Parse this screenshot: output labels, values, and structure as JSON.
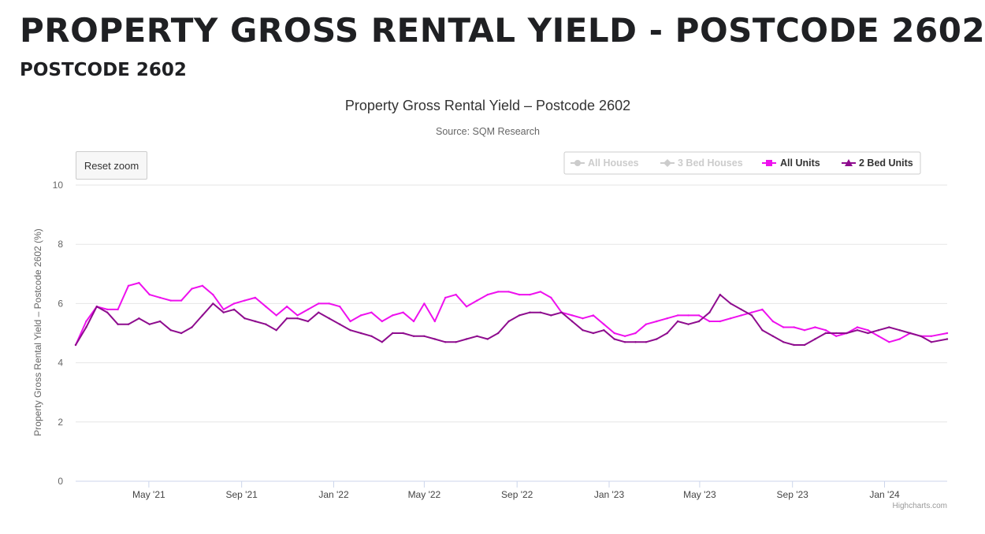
{
  "page": {
    "title": "PROPERTY GROSS RENTAL YIELD - POSTCODE 2602",
    "subtitle": "POSTCODE 2602"
  },
  "colors": {
    "all_houses": "#cccccc",
    "three_bed_houses": "#cccccc",
    "all_units": "#ee11ee",
    "two_bed_units": "#8e0c8e",
    "grid": "#e6e6e6",
    "axis_text": "#666666"
  },
  "chart_data": {
    "type": "line",
    "title": "Property Gross Rental Yield – Postcode 2602",
    "subtitle": "Source: SQM Research",
    "ylabel": "Property Gross Rental Yield – Postcode 2602 (%)",
    "xlabel": "",
    "ylim": [
      0,
      10
    ],
    "yticks": [
      0,
      2,
      4,
      6,
      8,
      10
    ],
    "x_range": [
      "2021-01-24",
      "2024-03-24"
    ],
    "xticks": [
      {
        "date": "2021-05-01",
        "label": "May '21"
      },
      {
        "date": "2021-09-01",
        "label": "Sep '21"
      },
      {
        "date": "2022-01-01",
        "label": "Jan '22"
      },
      {
        "date": "2022-05-01",
        "label": "May '22"
      },
      {
        "date": "2022-09-01",
        "label": "Sep '22"
      },
      {
        "date": "2023-01-01",
        "label": "Jan '23"
      },
      {
        "date": "2023-05-01",
        "label": "May '23"
      },
      {
        "date": "2023-09-01",
        "label": "Sep '23"
      },
      {
        "date": "2024-01-01",
        "label": "Jan '24"
      }
    ],
    "grid": true,
    "legend_position": "top-right",
    "credits": "Highcharts.com",
    "reset_zoom_label": "Reset zoom",
    "series": [
      {
        "name": "All Houses",
        "visible": false,
        "color": "#cccccc",
        "marker": "circle",
        "points": []
      },
      {
        "name": "3 Bed Houses",
        "visible": false,
        "color": "#cccccc",
        "marker": "diamond",
        "points": []
      },
      {
        "name": "All Units",
        "visible": true,
        "color": "#ee11ee",
        "marker": "square",
        "points": [
          [
            "2021-01-24",
            4.6
          ],
          [
            "2021-02-07",
            5.4
          ],
          [
            "2021-02-21",
            5.9
          ],
          [
            "2021-03-07",
            5.8
          ],
          [
            "2021-03-21",
            5.8
          ],
          [
            "2021-04-04",
            6.6
          ],
          [
            "2021-04-18",
            6.7
          ],
          [
            "2021-05-02",
            6.3
          ],
          [
            "2021-05-16",
            6.2
          ],
          [
            "2021-05-30",
            6.1
          ],
          [
            "2021-06-13",
            6.1
          ],
          [
            "2021-06-27",
            6.5
          ],
          [
            "2021-07-11",
            6.6
          ],
          [
            "2021-07-25",
            6.3
          ],
          [
            "2021-08-08",
            5.8
          ],
          [
            "2021-08-22",
            6.0
          ],
          [
            "2021-09-05",
            6.1
          ],
          [
            "2021-09-19",
            6.2
          ],
          [
            "2021-10-03",
            5.9
          ],
          [
            "2021-10-17",
            5.6
          ],
          [
            "2021-10-31",
            5.9
          ],
          [
            "2021-11-14",
            5.6
          ],
          [
            "2021-11-28",
            5.8
          ],
          [
            "2021-12-12",
            6.0
          ],
          [
            "2021-12-26",
            6.0
          ],
          [
            "2022-01-09",
            5.9
          ],
          [
            "2022-01-23",
            5.4
          ],
          [
            "2022-02-06",
            5.6
          ],
          [
            "2022-02-20",
            5.7
          ],
          [
            "2022-03-06",
            5.4
          ],
          [
            "2022-03-20",
            5.6
          ],
          [
            "2022-04-03",
            5.7
          ],
          [
            "2022-04-17",
            5.4
          ],
          [
            "2022-05-01",
            6.0
          ],
          [
            "2022-05-15",
            5.4
          ],
          [
            "2022-05-29",
            6.2
          ],
          [
            "2022-06-12",
            6.3
          ],
          [
            "2022-06-26",
            5.9
          ],
          [
            "2022-07-10",
            6.1
          ],
          [
            "2022-07-24",
            6.3
          ],
          [
            "2022-08-07",
            6.4
          ],
          [
            "2022-08-21",
            6.4
          ],
          [
            "2022-09-04",
            6.3
          ],
          [
            "2022-09-18",
            6.3
          ],
          [
            "2022-10-02",
            6.4
          ],
          [
            "2022-10-16",
            6.2
          ],
          [
            "2022-10-30",
            5.7
          ],
          [
            "2022-11-13",
            5.6
          ],
          [
            "2022-11-27",
            5.5
          ],
          [
            "2022-12-11",
            5.6
          ],
          [
            "2022-12-25",
            5.3
          ],
          [
            "2023-01-08",
            5.0
          ],
          [
            "2023-01-22",
            4.9
          ],
          [
            "2023-02-05",
            5.0
          ],
          [
            "2023-02-19",
            5.3
          ],
          [
            "2023-03-05",
            5.4
          ],
          [
            "2023-03-19",
            5.5
          ],
          [
            "2023-04-02",
            5.6
          ],
          [
            "2023-04-16",
            5.6
          ],
          [
            "2023-04-30",
            5.6
          ],
          [
            "2023-05-14",
            5.4
          ],
          [
            "2023-05-28",
            5.4
          ],
          [
            "2023-06-11",
            5.5
          ],
          [
            "2023-06-25",
            5.6
          ],
          [
            "2023-07-09",
            5.7
          ],
          [
            "2023-07-23",
            5.8
          ],
          [
            "2023-08-06",
            5.4
          ],
          [
            "2023-08-20",
            5.2
          ],
          [
            "2023-09-03",
            5.2
          ],
          [
            "2023-09-17",
            5.1
          ],
          [
            "2023-10-01",
            5.2
          ],
          [
            "2023-10-15",
            5.1
          ],
          [
            "2023-10-29",
            4.9
          ],
          [
            "2023-11-12",
            5.0
          ],
          [
            "2023-11-26",
            5.2
          ],
          [
            "2023-12-10",
            5.1
          ],
          [
            "2023-12-24",
            4.9
          ],
          [
            "2024-01-07",
            4.7
          ],
          [
            "2024-01-21",
            4.8
          ],
          [
            "2024-02-04",
            5.0
          ],
          [
            "2024-02-18",
            4.9
          ],
          [
            "2024-03-03",
            4.9
          ],
          [
            "2024-03-24",
            5.0
          ]
        ]
      },
      {
        "name": "2 Bed Units",
        "visible": true,
        "color": "#8e0c8e",
        "marker": "triangle",
        "points": [
          [
            "2021-01-24",
            4.6
          ],
          [
            "2021-02-07",
            5.2
          ],
          [
            "2021-02-21",
            5.9
          ],
          [
            "2021-03-07",
            5.7
          ],
          [
            "2021-03-21",
            5.3
          ],
          [
            "2021-04-04",
            5.3
          ],
          [
            "2021-04-18",
            5.5
          ],
          [
            "2021-05-02",
            5.3
          ],
          [
            "2021-05-16",
            5.4
          ],
          [
            "2021-05-30",
            5.1
          ],
          [
            "2021-06-13",
            5.0
          ],
          [
            "2021-06-27",
            5.2
          ],
          [
            "2021-07-11",
            5.6
          ],
          [
            "2021-07-25",
            6.0
          ],
          [
            "2021-08-08",
            5.7
          ],
          [
            "2021-08-22",
            5.8
          ],
          [
            "2021-09-05",
            5.5
          ],
          [
            "2021-09-19",
            5.4
          ],
          [
            "2021-10-03",
            5.3
          ],
          [
            "2021-10-17",
            5.1
          ],
          [
            "2021-10-31",
            5.5
          ],
          [
            "2021-11-14",
            5.5
          ],
          [
            "2021-11-28",
            5.4
          ],
          [
            "2021-12-12",
            5.7
          ],
          [
            "2021-12-26",
            5.5
          ],
          [
            "2022-01-09",
            5.3
          ],
          [
            "2022-01-23",
            5.1
          ],
          [
            "2022-02-06",
            5.0
          ],
          [
            "2022-02-20",
            4.9
          ],
          [
            "2022-03-06",
            4.7
          ],
          [
            "2022-03-20",
            5.0
          ],
          [
            "2022-04-03",
            5.0
          ],
          [
            "2022-04-17",
            4.9
          ],
          [
            "2022-05-01",
            4.9
          ],
          [
            "2022-05-15",
            4.8
          ],
          [
            "2022-05-29",
            4.7
          ],
          [
            "2022-06-12",
            4.7
          ],
          [
            "2022-06-26",
            4.8
          ],
          [
            "2022-07-10",
            4.9
          ],
          [
            "2022-07-24",
            4.8
          ],
          [
            "2022-08-07",
            5.0
          ],
          [
            "2022-08-21",
            5.4
          ],
          [
            "2022-09-04",
            5.6
          ],
          [
            "2022-09-18",
            5.7
          ],
          [
            "2022-10-02",
            5.7
          ],
          [
            "2022-10-16",
            5.6
          ],
          [
            "2022-10-30",
            5.7
          ],
          [
            "2022-11-13",
            5.4
          ],
          [
            "2022-11-27",
            5.1
          ],
          [
            "2022-12-11",
            5.0
          ],
          [
            "2022-12-25",
            5.1
          ],
          [
            "2023-01-08",
            4.8
          ],
          [
            "2023-01-22",
            4.7
          ],
          [
            "2023-02-05",
            4.7
          ],
          [
            "2023-02-19",
            4.7
          ],
          [
            "2023-03-05",
            4.8
          ],
          [
            "2023-03-19",
            5.0
          ],
          [
            "2023-04-02",
            5.4
          ],
          [
            "2023-04-16",
            5.3
          ],
          [
            "2023-04-30",
            5.4
          ],
          [
            "2023-05-14",
            5.7
          ],
          [
            "2023-05-28",
            6.3
          ],
          [
            "2023-06-11",
            6.0
          ],
          [
            "2023-06-25",
            5.8
          ],
          [
            "2023-07-09",
            5.6
          ],
          [
            "2023-07-23",
            5.1
          ],
          [
            "2023-08-06",
            4.9
          ],
          [
            "2023-08-20",
            4.7
          ],
          [
            "2023-09-03",
            4.6
          ],
          [
            "2023-09-17",
            4.6
          ],
          [
            "2023-10-01",
            4.8
          ],
          [
            "2023-10-15",
            5.0
          ],
          [
            "2023-10-29",
            5.0
          ],
          [
            "2023-11-12",
            5.0
          ],
          [
            "2023-11-26",
            5.1
          ],
          [
            "2023-12-10",
            5.0
          ],
          [
            "2023-12-24",
            5.1
          ],
          [
            "2024-01-07",
            5.2
          ],
          [
            "2024-01-21",
            5.1
          ],
          [
            "2024-02-04",
            5.0
          ],
          [
            "2024-02-18",
            4.9
          ],
          [
            "2024-03-03",
            4.7
          ],
          [
            "2024-03-24",
            4.8
          ]
        ]
      }
    ]
  }
}
